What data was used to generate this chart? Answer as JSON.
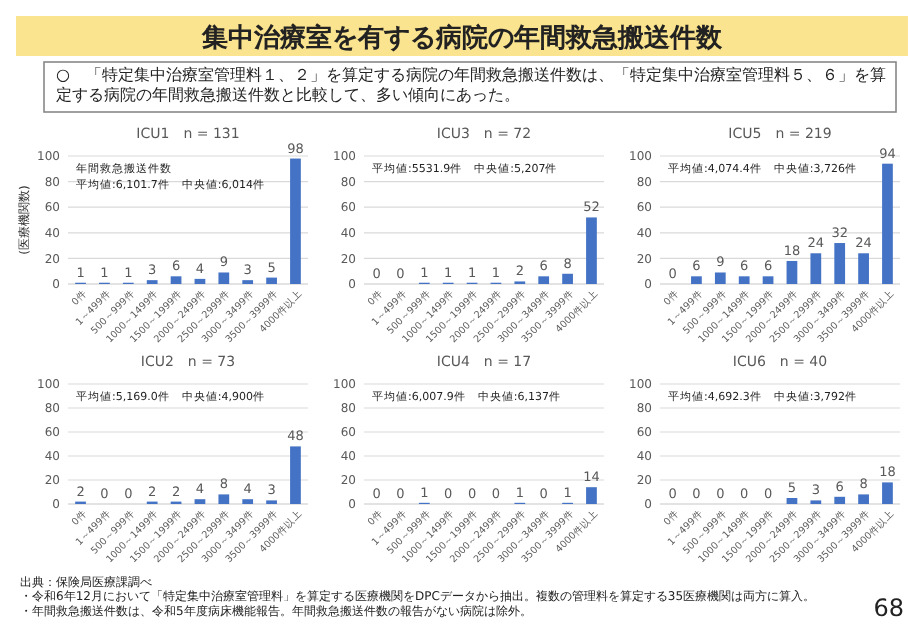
{
  "chart_data": [
    {
      "type": "other",
      "title": "集中治療室を有する病院の年間救急搬送件数",
      "subtitle": "○　「特定集中治療室管理料１、２」を算定する病院の年間救急搬送件数は、「特定集中治療室管理料５、６」を算定する病院の年間救急搬送件数と比較して、多い傾向にあった。",
      "annotations": [
        "出典：保険局医療課調べ",
        "・令和6年12月において「特定集中治療室管理料」を算定する医療機関をDPCデータから抽出。複数の管理料を算定する35医療機関は両方に算入。",
        "・年間救急搬送件数は、令和5年度病床機能報告。年間救急搬送件数の報告がない病院は除外。",
        "68"
      ]
    },
    {
      "type": "bar",
      "title": "ICU1　n = 131",
      "ylabel": "(医療機関数)",
      "categories": [
        "0件",
        "1～499件",
        "500～999件",
        "1000～1499件",
        "1500～1999件",
        "2000～2499件",
        "2500～2999件",
        "3000～3499件",
        "3500～3999件",
        "4000件以上"
      ],
      "values": [
        1,
        1,
        1,
        3,
        6,
        4,
        9,
        3,
        5,
        98
      ],
      "color": "#4472c4",
      "ylim": [
        0,
        100
      ],
      "yticks": [
        0,
        20,
        40,
        60,
        80,
        100
      ],
      "grid": "y",
      "data_labels": true,
      "annotations": [
        "年間救急搬送件数",
        "平均値:6,101.7件　中央値:6,014件"
      ]
    },
    {
      "type": "bar",
      "title": "ICU3　n = 72",
      "categories": [
        "0件",
        "1～499件",
        "500～999件",
        "1000～1499件",
        "1500～1999件",
        "2000～2499件",
        "2500～2999件",
        "3000～3499件",
        "3500～3999件",
        "4000件以上"
      ],
      "values": [
        0,
        0,
        1,
        1,
        1,
        1,
        2,
        6,
        8,
        52
      ],
      "color": "#4472c4",
      "ylim": [
        0,
        100
      ],
      "yticks": [
        0,
        20,
        40,
        60,
        80,
        100
      ],
      "grid": "y",
      "data_labels": true,
      "annotations": [
        "平均値:5531.9件　中央値:5,207件"
      ]
    },
    {
      "type": "bar",
      "title": "ICU5　n = 219",
      "categories": [
        "0件",
        "1～499件",
        "500～999件",
        "1000～1499件",
        "1500～1999件",
        "2000～2499件",
        "2500～2999件",
        "3000～3499件",
        "3500～3999件",
        "4000件以上"
      ],
      "values": [
        0,
        6,
        9,
        6,
        6,
        18,
        24,
        32,
        24,
        94
      ],
      "color": "#4472c4",
      "ylim": [
        0,
        100
      ],
      "yticks": [
        0,
        20,
        40,
        60,
        80,
        100
      ],
      "grid": "y",
      "data_labels": true,
      "annotations": [
        "平均値:4,074.4件　中央値:3,726件"
      ]
    },
    {
      "type": "bar",
      "title": "ICU2　n = 73",
      "categories": [
        "0件",
        "1～499件",
        "500～999件",
        "1000～1499件",
        "1500～1999件",
        "2000～2499件",
        "2500～2999件",
        "3000～3499件",
        "3500～3999件",
        "4000件以上"
      ],
      "values": [
        2,
        0,
        0,
        2,
        2,
        4,
        8,
        4,
        3,
        48
      ],
      "color": "#4472c4",
      "ylim": [
        0,
        100
      ],
      "yticks": [
        0,
        20,
        40,
        60,
        80,
        100
      ],
      "grid": "y",
      "data_labels": true,
      "annotations": [
        "平均値:5,169.0件　中央値:4,900件"
      ]
    },
    {
      "type": "bar",
      "title": "ICU4　n = 17",
      "categories": [
        "0件",
        "1～499件",
        "500～999件",
        "1000～1499件",
        "1500～1999件",
        "2000～2499件",
        "2500～2999件",
        "3000～3499件",
        "3500～3999件",
        "4000件以上"
      ],
      "values": [
        0,
        0,
        1,
        0,
        0,
        0,
        1,
        0,
        1,
        14
      ],
      "color": "#4472c4",
      "ylim": [
        0,
        100
      ],
      "yticks": [
        0,
        20,
        40,
        60,
        80,
        100
      ],
      "grid": "y",
      "data_labels": true,
      "annotations": [
        "平均値:6,007.9件　中央値:6,137件"
      ]
    },
    {
      "type": "bar",
      "title": "ICU6　n = 40",
      "categories": [
        "0件",
        "1～499件",
        "500～999件",
        "1000～1499件",
        "1500～1999件",
        "2000～2499件",
        "2500～2999件",
        "3000～3499件",
        "3500～3999件",
        "4000件以上"
      ],
      "values": [
        0,
        0,
        0,
        0,
        0,
        5,
        3,
        6,
        8,
        18
      ],
      "color": "#4472c4",
      "ylim": [
        0,
        100
      ],
      "yticks": [
        0,
        20,
        40,
        60,
        80,
        100
      ],
      "grid": "y",
      "data_labels": true,
      "annotations": [
        "平均値:4,692.3件　中央値:3,792件"
      ]
    }
  ]
}
